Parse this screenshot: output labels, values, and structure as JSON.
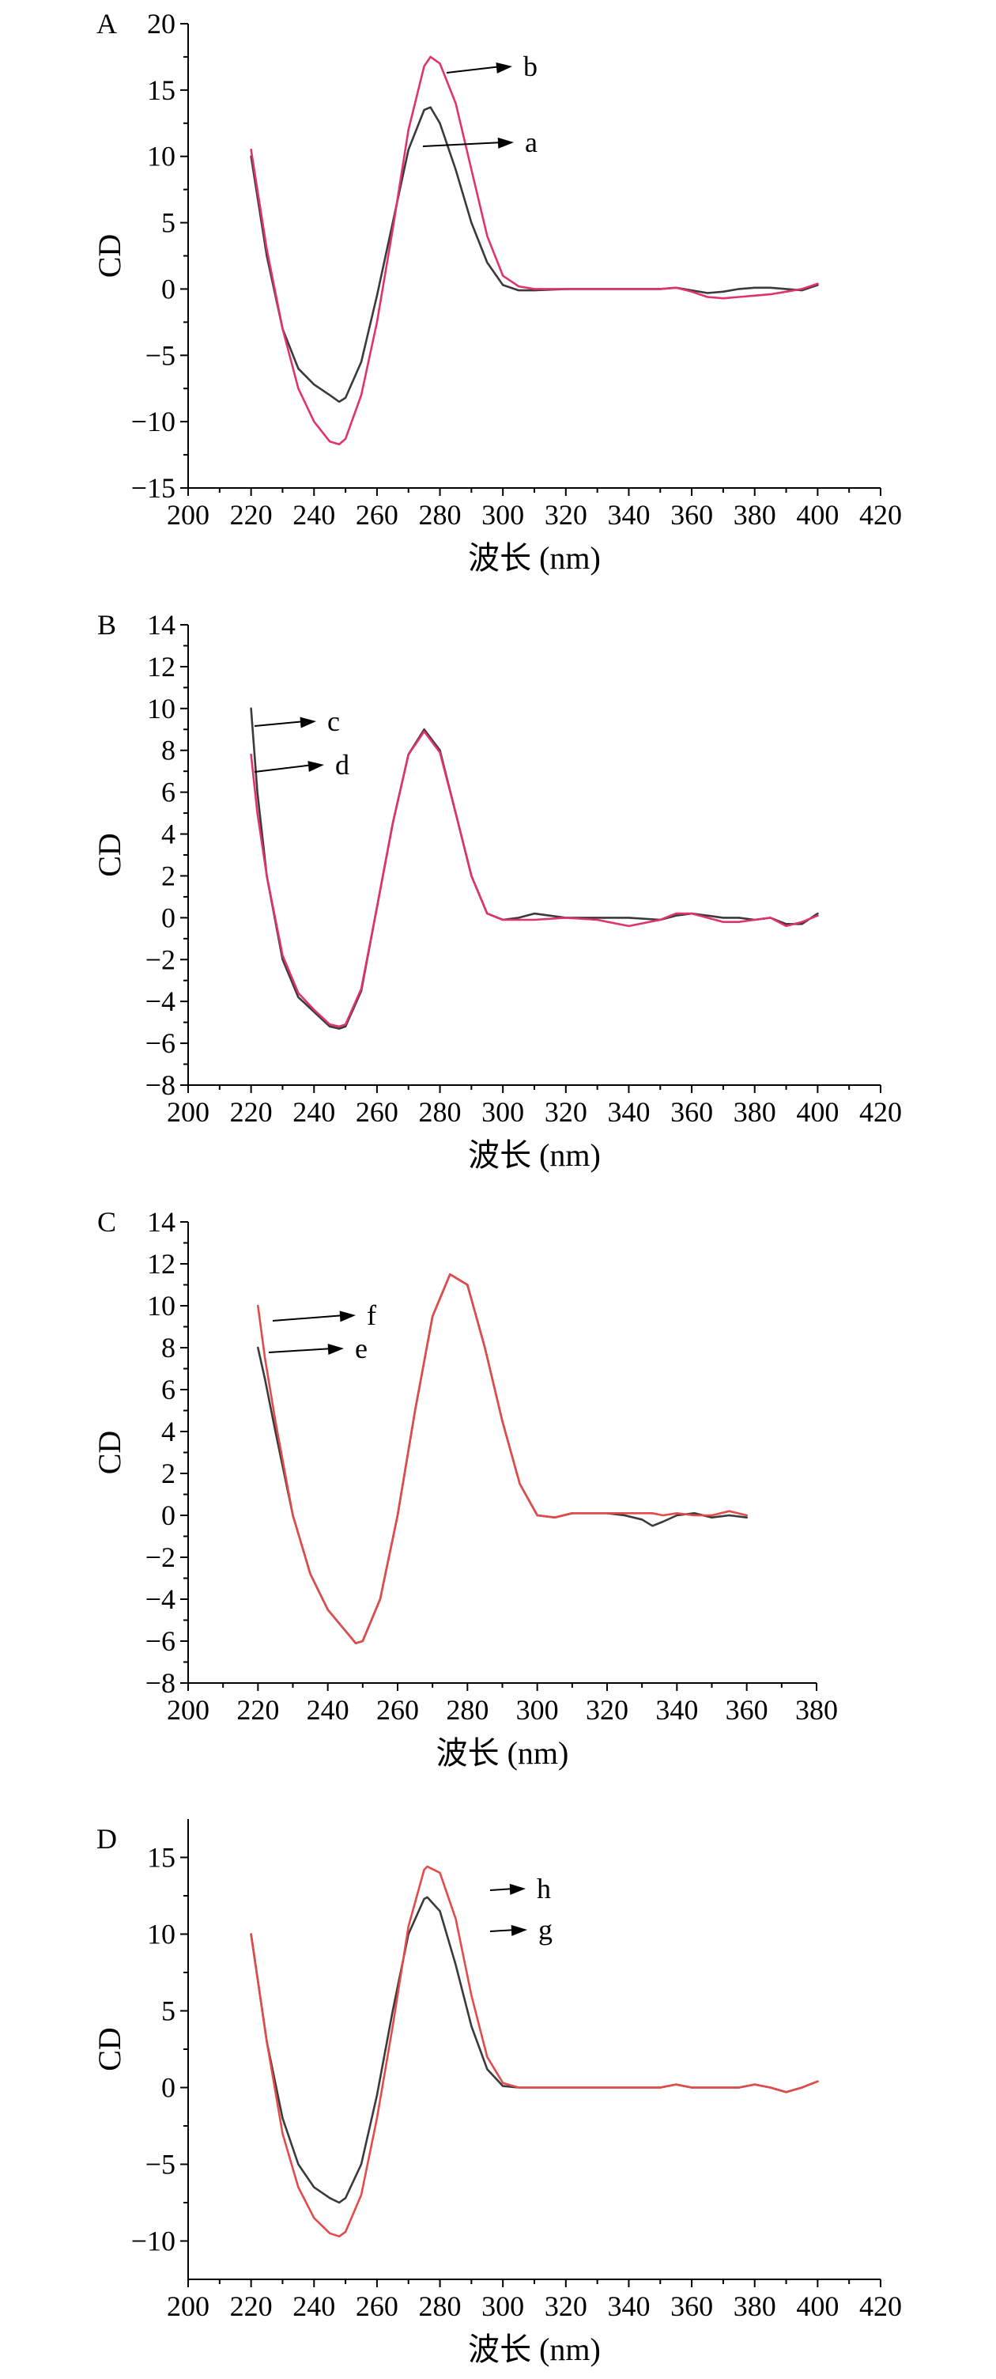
{
  "colors": {
    "dark": "#3a3a3a",
    "red": "#e0336a",
    "red2": "#e34a4a",
    "axis": "#000000"
  },
  "chart_data": [
    {
      "type": "line",
      "panel_label": "A",
      "xlabel": "波长 (nm)",
      "ylabel": "CD",
      "xlim": [
        200,
        420
      ],
      "ylim": [
        -15,
        20
      ],
      "xticks": [
        200,
        220,
        240,
        260,
        280,
        300,
        320,
        340,
        360,
        380,
        400,
        420
      ],
      "yticks": [
        -15,
        -10,
        -5,
        0,
        5,
        10,
        15,
        20
      ],
      "series": [
        {
          "name": "a",
          "color": "#3a3a3a",
          "x": [
            220,
            225,
            230,
            235,
            240,
            245,
            248,
            250,
            255,
            260,
            265,
            270,
            275,
            277,
            280,
            285,
            290,
            295,
            300,
            305,
            310,
            320,
            330,
            340,
            350,
            355,
            360,
            365,
            370,
            375,
            380,
            385,
            390,
            395,
            400
          ],
          "y": [
            10,
            2.5,
            -3,
            -6,
            -7.2,
            -8,
            -8.5,
            -8.2,
            -5.5,
            -0.5,
            5,
            10.5,
            13.5,
            13.7,
            12.5,
            9,
            5,
            2,
            0.3,
            -0.1,
            -0.1,
            0,
            0,
            0,
            0,
            0.1,
            -0.1,
            -0.3,
            -0.2,
            0,
            0.1,
            0.1,
            0,
            -0.1,
            0.3
          ]
        },
        {
          "name": "b",
          "color": "#e0336a",
          "x": [
            220,
            225,
            230,
            235,
            240,
            245,
            248,
            250,
            255,
            260,
            265,
            270,
            275,
            277,
            280,
            285,
            290,
            295,
            300,
            305,
            310,
            320,
            330,
            340,
            350,
            355,
            360,
            365,
            370,
            375,
            380,
            385,
            390,
            395,
            400
          ],
          "y": [
            10.5,
            3,
            -3,
            -7.5,
            -10,
            -11.5,
            -11.7,
            -11.3,
            -8,
            -2.5,
            4.5,
            12,
            16.8,
            17.5,
            17,
            14,
            9,
            4,
            1,
            0.2,
            0,
            0,
            0,
            0,
            0,
            0.1,
            -0.2,
            -0.6,
            -0.7,
            -0.6,
            -0.5,
            -0.4,
            -0.2,
            0,
            0.4
          ]
        }
      ],
      "annotations": [
        {
          "text": "b",
          "series": "b"
        },
        {
          "text": "a",
          "series": "a"
        }
      ]
    },
    {
      "type": "line",
      "panel_label": "B",
      "xlabel": "波长 (nm)",
      "ylabel": "CD",
      "xlim": [
        200,
        420
      ],
      "ylim": [
        -8,
        14
      ],
      "xticks": [
        200,
        220,
        240,
        260,
        280,
        300,
        320,
        340,
        360,
        380,
        400,
        420
      ],
      "yticks": [
        -8,
        -6,
        -4,
        -2,
        0,
        2,
        4,
        6,
        8,
        10,
        12,
        14
      ],
      "series": [
        {
          "name": "c",
          "color": "#3a3a3a",
          "x": [
            220,
            222,
            225,
            230,
            235,
            240,
            245,
            248,
            250,
            255,
            260,
            265,
            270,
            275,
            280,
            285,
            290,
            295,
            300,
            305,
            310,
            320,
            330,
            340,
            350,
            355,
            360,
            365,
            370,
            375,
            380,
            385,
            390,
            395,
            400
          ],
          "y": [
            10,
            6,
            2,
            -2,
            -3.8,
            -4.5,
            -5.2,
            -5.3,
            -5.2,
            -3.5,
            0.5,
            4.5,
            7.8,
            9,
            8,
            5,
            2,
            0.2,
            -0.1,
            0,
            0.2,
            0,
            0,
            0,
            -0.1,
            0.1,
            0.2,
            0.1,
            0,
            0,
            -0.1,
            0,
            -0.3,
            -0.3,
            0.2
          ]
        },
        {
          "name": "d",
          "color": "#e0336a",
          "x": [
            220,
            222,
            225,
            230,
            235,
            240,
            245,
            248,
            250,
            255,
            260,
            265,
            270,
            275,
            280,
            285,
            290,
            295,
            300,
            305,
            310,
            320,
            330,
            340,
            350,
            355,
            360,
            365,
            370,
            375,
            380,
            385,
            390,
            395,
            400
          ],
          "y": [
            7.8,
            5,
            2,
            -1.8,
            -3.6,
            -4.4,
            -5.1,
            -5.2,
            -5.1,
            -3.4,
            0.5,
            4.5,
            7.8,
            8.9,
            7.9,
            5,
            2,
            0.2,
            -0.1,
            -0.1,
            -0.1,
            0,
            -0.1,
            -0.4,
            -0.1,
            0.2,
            0.2,
            0,
            -0.2,
            -0.2,
            -0.1,
            0,
            -0.4,
            -0.2,
            0.1
          ]
        }
      ],
      "annotations": [
        {
          "text": "c",
          "series": "c"
        },
        {
          "text": "d",
          "series": "d"
        }
      ]
    },
    {
      "type": "line",
      "panel_label": "C",
      "xlabel": "波长 (nm)",
      "ylabel": "CD",
      "xlim": [
        200,
        380
      ],
      "ylim": [
        -8,
        14
      ],
      "xticks": [
        200,
        220,
        240,
        260,
        280,
        300,
        320,
        340,
        360,
        380
      ],
      "yticks": [
        -8,
        -6,
        -4,
        -2,
        0,
        2,
        4,
        6,
        8,
        10,
        12,
        14
      ],
      "series": [
        {
          "name": "e",
          "color": "#3a3a3a",
          "x": [
            220,
            222,
            225,
            230,
            235,
            240,
            245,
            248,
            250,
            255,
            260,
            265,
            270,
            275,
            280,
            285,
            290,
            295,
            300,
            305,
            310,
            320,
            325,
            330,
            333,
            336,
            340,
            345,
            350,
            355,
            360
          ],
          "y": [
            8,
            6.5,
            4,
            0,
            -2.8,
            -4.5,
            -5.5,
            -6.1,
            -6,
            -4,
            0,
            5,
            9.5,
            11.5,
            11,
            8,
            4.5,
            1.5,
            0,
            -0.1,
            0.1,
            0.1,
            0,
            -0.2,
            -0.5,
            -0.3,
            0,
            0.1,
            -0.1,
            0,
            -0.1
          ]
        },
        {
          "name": "f",
          "color": "#e34a4a",
          "x": [
            220,
            222,
            225,
            230,
            235,
            240,
            245,
            248,
            250,
            255,
            260,
            265,
            270,
            275,
            280,
            285,
            290,
            295,
            300,
            305,
            310,
            320,
            325,
            330,
            333,
            336,
            340,
            345,
            350,
            355,
            360
          ],
          "y": [
            10,
            7.5,
            4.5,
            0,
            -2.8,
            -4.5,
            -5.5,
            -6.1,
            -6,
            -4,
            0,
            5,
            9.5,
            11.5,
            11,
            8,
            4.5,
            1.5,
            0,
            -0.1,
            0.1,
            0.1,
            0.1,
            0.1,
            0.1,
            0,
            0.1,
            0,
            0,
            0.2,
            0
          ]
        }
      ],
      "annotations": [
        {
          "text": "f",
          "series": "f"
        },
        {
          "text": "e",
          "series": "e"
        }
      ]
    },
    {
      "type": "line",
      "panel_label": "D",
      "xlabel": "波长 (nm)",
      "ylabel": "CD",
      "xlim": [
        200,
        420
      ],
      "ylim": [
        -12.5,
        17.5
      ],
      "xticks": [
        200,
        220,
        240,
        260,
        280,
        300,
        320,
        340,
        360,
        380,
        400,
        420
      ],
      "yticks": [
        -10,
        -5,
        0,
        5,
        10,
        15
      ],
      "series": [
        {
          "name": "g",
          "color": "#3a3a3a",
          "x": [
            220,
            225,
            230,
            235,
            240,
            245,
            248,
            250,
            255,
            260,
            265,
            270,
            275,
            276,
            280,
            285,
            290,
            295,
            300,
            305,
            310,
            320,
            330,
            340,
            350,
            355,
            360,
            365,
            370,
            375,
            380,
            385,
            390,
            395,
            400
          ],
          "y": [
            10,
            3,
            -2,
            -5,
            -6.5,
            -7.2,
            -7.5,
            -7.2,
            -5,
            -0.5,
            5,
            10,
            12.3,
            12.4,
            11.5,
            8,
            4,
            1.2,
            0.1,
            0,
            0,
            0,
            0,
            0,
            0,
            0.2,
            0,
            0,
            0,
            0,
            0.2,
            0,
            -0.3,
            0,
            0.4
          ]
        },
        {
          "name": "h",
          "color": "#e34a4a",
          "x": [
            220,
            225,
            230,
            235,
            240,
            245,
            248,
            250,
            255,
            260,
            265,
            270,
            275,
            276,
            280,
            285,
            290,
            295,
            300,
            305,
            310,
            320,
            330,
            340,
            350,
            355,
            360,
            365,
            370,
            375,
            380,
            385,
            390,
            395,
            400
          ],
          "y": [
            10,
            3,
            -3,
            -6.5,
            -8.5,
            -9.5,
            -9.7,
            -9.4,
            -7,
            -2,
            4,
            10.5,
            14.2,
            14.4,
            14,
            11,
            6,
            2,
            0.3,
            0,
            0,
            0,
            0,
            0,
            0,
            0.2,
            0,
            0,
            0,
            0,
            0.2,
            0,
            -0.3,
            0,
            0.4
          ]
        }
      ],
      "annotations": [
        {
          "text": "h",
          "series": "h"
        },
        {
          "text": "g",
          "series": "g"
        }
      ]
    }
  ]
}
